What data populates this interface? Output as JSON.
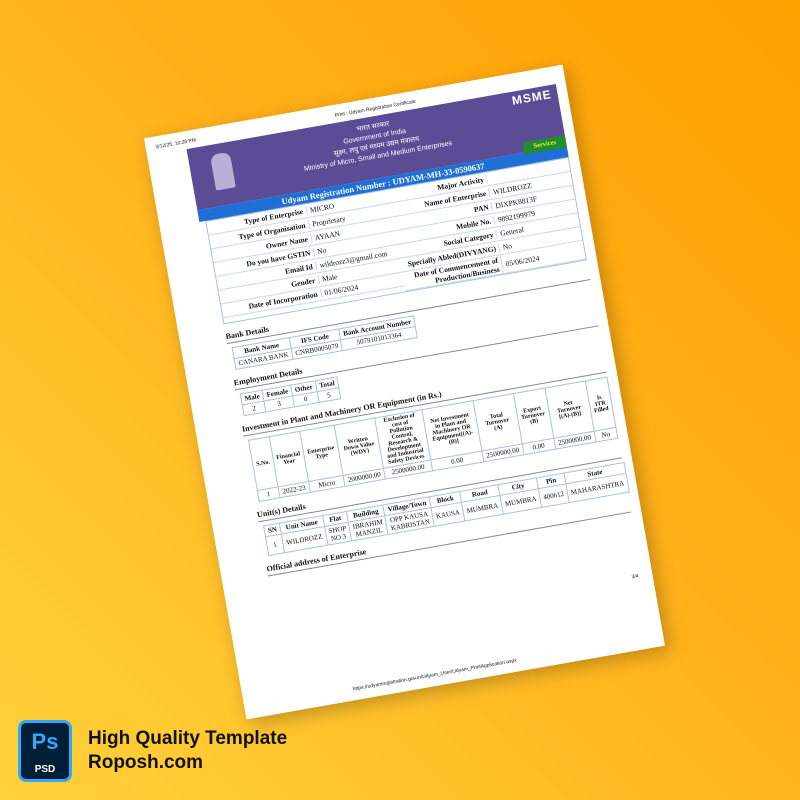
{
  "page": {
    "timestamp": "3/12/25, 10:28 PM",
    "print_title": "Print : Udyam Registration Certificate",
    "page_number": "3/4",
    "url": "https://udyamregistration.gov.in/Udyam_User/Udyam_PrintApplication.aspx"
  },
  "header": {
    "hindi_gov": "भारत सरकार",
    "gov": "Government of India",
    "hindi_ministry": "सूक्ष्म, लघु एवं मध्यम उद्यम मंत्रालय",
    "ministry": "Ministry of Micro, Small and Medium Enterprises",
    "logo": "MSME"
  },
  "registration": {
    "label": "Udyam Registration Number  :  UDYAM-MH-33-0590637",
    "activity": "Services"
  },
  "left": [
    [
      "Type of Enterprise",
      "MICRO"
    ],
    [
      "Type of Organisation",
      "Proprietary"
    ],
    [
      "Owner Name",
      "AYAAN"
    ],
    [
      "Do you have GSTIN",
      "No"
    ],
    [
      "Email Id",
      "wildrozz3@gmail.com"
    ],
    [
      "Gender",
      "Male"
    ],
    [
      "Date of Incorporation",
      "01/06/2024"
    ]
  ],
  "right": [
    [
      "Major Activity",
      ""
    ],
    [
      "Name of Enterprise",
      "WILDROZZ"
    ],
    [
      "PAN",
      "DIXPK8813F"
    ],
    [
      "Mobile No.",
      "9892199979"
    ],
    [
      "Social Category",
      "General"
    ],
    [
      "Specially Abled(DIVYANG)",
      "No"
    ],
    [
      "Date of Commencement of Production/Business",
      "05/06/2024"
    ]
  ],
  "bank": {
    "title": "Bank Details",
    "headers": [
      "Bank Name",
      "IFS Code",
      "Bank Account Number"
    ],
    "values": [
      "CANARA BANK",
      "CNRB0005079",
      "5079101013364"
    ]
  },
  "employment": {
    "title": "Employment Details",
    "headers": [
      "Male",
      "Female",
      "Other",
      "Total"
    ],
    "values": [
      "2",
      "3",
      "0",
      "5"
    ]
  },
  "investment": {
    "title": "Investment in Plant and Machinery OR Equipment (in Rs.)",
    "headers": [
      "S.No.",
      "Financial Year",
      "Enterprise Type",
      "Written Down Value (WDV)",
      "Exclusion of cost of Pollution Control, Research & Development and Industrial Safety Devices",
      "Net Investment in Plant and Machinery OR Equipment[(A)-(B)]",
      "Total Turnover (A)",
      "Export Turnover (B)",
      "Net Turnover [(A)-(B)]",
      "Is ITR Filled"
    ],
    "values": [
      "1",
      "2022-23",
      "Micro",
      "2000000.00",
      "2500000.00",
      "0.00",
      "2500000.00",
      "0.00",
      "2500000.00",
      "No"
    ]
  },
  "units": {
    "title": "Unit(s) Details",
    "headers": [
      "SN",
      "Unit Name",
      "Flat",
      "Building",
      "Village/Town",
      "Block",
      "Road",
      "City",
      "Pin",
      "State"
    ],
    "values": [
      "1",
      "WILDROZZ",
      "SHOP NO 3",
      "IBRAHIM MANZIL",
      "OPP KAUSA KABRISTAN",
      "KAUSA",
      "MUMBRA",
      "MUMBRA",
      "400612",
      "MAHARASHTRA"
    ]
  },
  "official_title": "Official address of Enterprise",
  "brand": {
    "icon_top": "Ps",
    "icon_bottom": "PSD",
    "line1": "High Quality Template",
    "line2": "Roposh.com"
  }
}
